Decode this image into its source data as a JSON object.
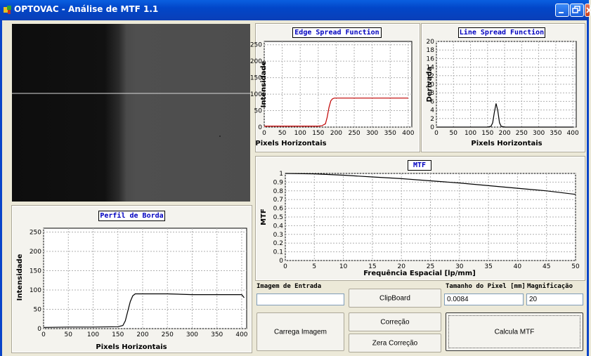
{
  "window": {
    "title": "OPTOVAC - Análise de MTF 1.1"
  },
  "charts": {
    "esf": {
      "title": "Edge Spread Function",
      "xlabel": "Pixels Horizontais",
      "ylabel": "Intensidade"
    },
    "lsf": {
      "title": "Line Spread Function",
      "xlabel": "Pixels Horizontais",
      "ylabel": "Derivada"
    },
    "mtf": {
      "title": "MTF",
      "xlabel": "Frequência Espacial [lp/mm]",
      "ylabel": "MTF"
    },
    "perfil": {
      "title": "Perfil de Borda",
      "xlabel": "Pixels Horizontais",
      "ylabel": "Intensidade"
    }
  },
  "chart_data": [
    {
      "id": "esf",
      "type": "line",
      "title": "Edge Spread Function",
      "xlabel": "Pixels Horizontais",
      "ylabel": "Intensidade",
      "xlim": [
        0,
        410
      ],
      "ylim": [
        0,
        260
      ],
      "xticks": [
        0,
        50,
        100,
        150,
        200,
        250,
        300,
        350,
        400
      ],
      "yticks": [
        0,
        50,
        100,
        150,
        200,
        250
      ],
      "grid": true,
      "color": "#c00000",
      "series": [
        {
          "x": [
            0,
            150,
            160,
            170,
            175,
            180,
            185,
            190,
            195,
            200,
            250,
            300,
            350,
            400
          ],
          "y": [
            3,
            3,
            4,
            10,
            30,
            60,
            80,
            86,
            88,
            88,
            88,
            88,
            88,
            88
          ]
        }
      ]
    },
    {
      "id": "lsf",
      "type": "line",
      "title": "Line Spread Function",
      "xlabel": "Pixels Horizontais",
      "ylabel": "Derivada",
      "xlim": [
        0,
        410
      ],
      "ylim": [
        0,
        20
      ],
      "xticks": [
        0,
        50,
        100,
        150,
        200,
        250,
        300,
        350,
        400
      ],
      "yticks": [
        0,
        2,
        4,
        6,
        8,
        10,
        12,
        14,
        16,
        18,
        20
      ],
      "grid": true,
      "color": "#000000",
      "series": [
        {
          "x": [
            0,
            150,
            160,
            165,
            170,
            175,
            180,
            185,
            190,
            200,
            250,
            300,
            350,
            400
          ],
          "y": [
            0,
            0,
            0.2,
            1,
            3.5,
            5.5,
            3.8,
            1,
            0.2,
            0,
            0,
            0,
            0,
            0
          ]
        }
      ]
    },
    {
      "id": "mtf",
      "type": "line",
      "title": "MTF",
      "xlabel": "Frequência Espacial [lp/mm]",
      "ylabel": "MTF",
      "xlim": [
        0,
        50
      ],
      "ylim": [
        0,
        1
      ],
      "xticks": [
        0,
        5,
        10,
        15,
        20,
        25,
        30,
        35,
        40,
        45,
        50
      ],
      "yticks": [
        0,
        0.1,
        0.2,
        0.3,
        0.4,
        0.5,
        0.6,
        0.7,
        0.8,
        0.9,
        1
      ],
      "grid": true,
      "color": "#000000",
      "series": [
        {
          "x": [
            0,
            5,
            10,
            15,
            20,
            25,
            30,
            35,
            40,
            45,
            50
          ],
          "y": [
            1,
            0.995,
            0.98,
            0.96,
            0.94,
            0.915,
            0.89,
            0.86,
            0.83,
            0.8,
            0.76
          ]
        }
      ]
    },
    {
      "id": "perfil",
      "type": "line",
      "title": "Perfil de Borda",
      "xlabel": "Pixels Horizontais",
      "ylabel": "Intensidade",
      "xlim": [
        0,
        410
      ],
      "ylim": [
        0,
        260
      ],
      "xticks": [
        0,
        50,
        100,
        150,
        200,
        250,
        300,
        350,
        400
      ],
      "yticks": [
        0,
        50,
        100,
        150,
        200,
        250
      ],
      "grid": true,
      "color": "#000000",
      "series": [
        {
          "x": [
            0,
            50,
            100,
            150,
            160,
            165,
            170,
            175,
            180,
            185,
            190,
            200,
            250,
            300,
            350,
            400,
            405
          ],
          "y": [
            3,
            4,
            4,
            5,
            8,
            20,
            45,
            70,
            85,
            90,
            90,
            90,
            90,
            88,
            88,
            88,
            80
          ]
        }
      ]
    }
  ],
  "controls": {
    "imagem_label": "Imagem de Entrada",
    "imagem_value": "",
    "clipboard": "ClipBoard",
    "pixel_label": "Tamanho do Pixel [mm]",
    "pixel_value": "0.0084",
    "magn_label": "Magnificação",
    "magn_value": "20",
    "carrega": "Carrega Imagem",
    "correcao": "Correção",
    "zera": "Zera Correção",
    "calcula": "Calcula MTF"
  },
  "colors": {
    "titlebar": "#0246c8",
    "chart_title_text": "#0000c0",
    "esf_curve": "#c00000"
  },
  "icons": [
    "app-icon",
    "minimize-icon",
    "restore-icon",
    "close-icon"
  ]
}
